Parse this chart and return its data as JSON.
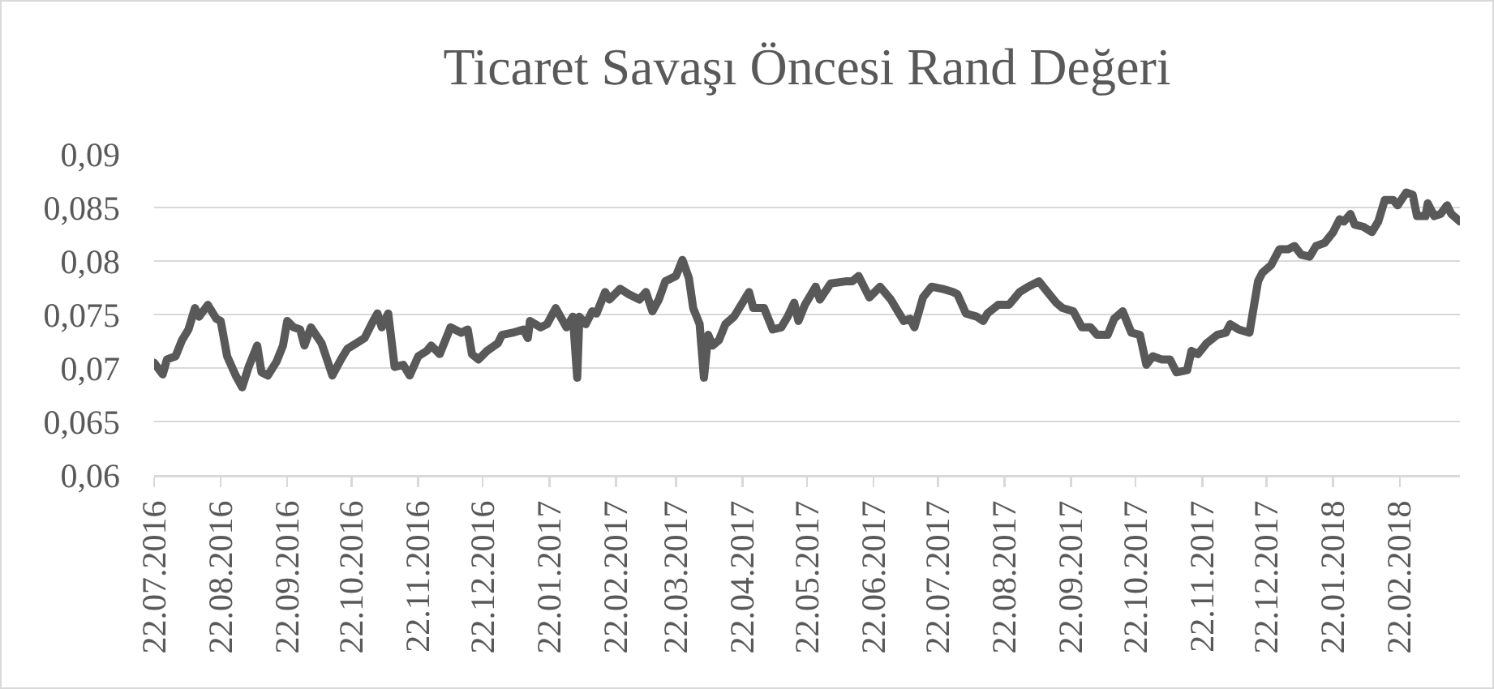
{
  "chart_data": {
    "type": "line",
    "title": "Ticaret Savaşı Öncesi Rand Değeri",
    "x": [
      "2016-07-22",
      "2016-07-26",
      "2016-07-28",
      "2016-08-01",
      "2016-08-04",
      "2016-08-07",
      "2016-08-10",
      "2016-08-12",
      "2016-08-16",
      "2016-08-20",
      "2016-08-22",
      "2016-08-25",
      "2016-08-29",
      "2016-09-01",
      "2016-09-04",
      "2016-09-08",
      "2016-09-10",
      "2016-09-13",
      "2016-09-17",
      "2016-09-20",
      "2016-09-22",
      "2016-09-25",
      "2016-09-28",
      "2016-09-30",
      "2016-10-03",
      "2016-10-08",
      "2016-10-13",
      "2016-10-17",
      "2016-10-20",
      "2016-10-24",
      "2016-10-28",
      "2016-11-01",
      "2016-11-03",
      "2016-11-05",
      "2016-11-08",
      "2016-11-11",
      "2016-11-15",
      "2016-11-18",
      "2016-11-22",
      "2016-11-26",
      "2016-11-28",
      "2016-12-02",
      "2016-12-07",
      "2016-12-12",
      "2016-12-15",
      "2016-12-17",
      "2016-12-20",
      "2016-12-24",
      "2016-12-29",
      "2016-12-31",
      "2017-01-05",
      "2017-01-10",
      "2017-01-12",
      "2017-01-13",
      "2017-01-18",
      "2017-01-21",
      "2017-01-25",
      "2017-01-30",
      "2017-02-02",
      "2017-02-04",
      "2017-02-05",
      "2017-02-08",
      "2017-02-11",
      "2017-02-13",
      "2017-02-17",
      "2017-02-19",
      "2017-02-24",
      "2017-02-28",
      "2017-03-05",
      "2017-03-08",
      "2017-03-11",
      "2017-03-14",
      "2017-03-17",
      "2017-03-22",
      "2017-03-25",
      "2017-03-28",
      "2017-03-30",
      "2017-04-02",
      "2017-04-04",
      "2017-04-06",
      "2017-04-08",
      "2017-04-11",
      "2017-04-14",
      "2017-04-18",
      "2017-04-22",
      "2017-04-25",
      "2017-04-27",
      "2017-05-02",
      "2017-05-06",
      "2017-05-10",
      "2017-05-13",
      "2017-05-16",
      "2017-05-18",
      "2017-05-21",
      "2017-05-26",
      "2017-05-28",
      "2017-06-02",
      "2017-06-09",
      "2017-06-12",
      "2017-06-15",
      "2017-06-20",
      "2017-06-25",
      "2017-06-30",
      "2017-07-06",
      "2017-07-09",
      "2017-07-11",
      "2017-07-15",
      "2017-07-19",
      "2017-07-24",
      "2017-07-29",
      "2017-07-31",
      "2017-08-04",
      "2017-08-09",
      "2017-08-12",
      "2017-08-14",
      "2017-08-19",
      "2017-08-24",
      "2017-08-29",
      "2017-09-02",
      "2017-09-07",
      "2017-09-11",
      "2017-09-15",
      "2017-09-18",
      "2017-09-23",
      "2017-09-27",
      "2017-10-01",
      "2017-10-04",
      "2017-10-09",
      "2017-10-12",
      "2017-10-16",
      "2017-10-20",
      "2017-10-24",
      "2017-10-27",
      "2017-10-30",
      "2017-11-03",
      "2017-11-07",
      "2017-11-10",
      "2017-11-15",
      "2017-11-17",
      "2017-11-20",
      "2017-11-24",
      "2017-11-29",
      "2017-12-03",
      "2017-12-05",
      "2017-12-09",
      "2017-12-14",
      "2017-12-18",
      "2017-12-20",
      "2017-12-24",
      "2017-12-28",
      "2018-01-01",
      "2018-01-04",
      "2018-01-07",
      "2018-01-11",
      "2018-01-14",
      "2018-01-18",
      "2018-01-22",
      "2018-01-25",
      "2018-01-27",
      "2018-01-30",
      "2018-02-01",
      "2018-02-05",
      "2018-02-09",
      "2018-02-12",
      "2018-02-15",
      "2018-02-19",
      "2018-02-21",
      "2018-02-25",
      "2018-02-28",
      "2018-03-02",
      "2018-03-06",
      "2018-03-07",
      "2018-03-10",
      "2018-03-13",
      "2018-03-16",
      "2018-03-18",
      "2018-03-22"
    ],
    "series": [
      {
        "color": "#595959",
        "values": [
          0.0705,
          0.0694,
          0.0708,
          0.0711,
          0.0726,
          0.0736,
          0.0756,
          0.0748,
          0.0759,
          0.0746,
          0.0744,
          0.0711,
          0.0693,
          0.0682,
          0.0701,
          0.0721,
          0.0696,
          0.0693,
          0.0706,
          0.0721,
          0.0744,
          0.0738,
          0.0736,
          0.0721,
          0.0738,
          0.0723,
          0.0693,
          0.0708,
          0.0718,
          0.0723,
          0.0728,
          0.0744,
          0.0751,
          0.0738,
          0.0751,
          0.0701,
          0.0703,
          0.0693,
          0.0711,
          0.0716,
          0.0721,
          0.0713,
          0.0738,
          0.0733,
          0.0736,
          0.0713,
          0.0708,
          0.0716,
          0.0723,
          0.0731,
          0.0733,
          0.0736,
          0.0728,
          0.0744,
          0.0738,
          0.0741,
          0.0756,
          0.0738,
          0.0748,
          0.0691,
          0.0748,
          0.0741,
          0.0753,
          0.0751,
          0.0771,
          0.0764,
          0.0774,
          0.0769,
          0.0764,
          0.0771,
          0.0753,
          0.0764,
          0.0781,
          0.0786,
          0.0801,
          0.0784,
          0.0756,
          0.0741,
          0.0691,
          0.0731,
          0.0721,
          0.0726,
          0.0741,
          0.0748,
          0.0761,
          0.0771,
          0.0756,
          0.0756,
          0.0736,
          0.0738,
          0.0748,
          0.0761,
          0.0744,
          0.0759,
          0.0776,
          0.0764,
          0.0779,
          0.0781,
          0.0781,
          0.0786,
          0.0766,
          0.0776,
          0.0764,
          0.0744,
          0.0746,
          0.0738,
          0.0766,
          0.0776,
          0.0774,
          0.0771,
          0.0769,
          0.0751,
          0.0748,
          0.0744,
          0.0751,
          0.0759,
          0.0759,
          0.0771,
          0.0776,
          0.0781,
          0.0771,
          0.0761,
          0.0756,
          0.0753,
          0.0738,
          0.0738,
          0.0731,
          0.0731,
          0.0746,
          0.0753,
          0.0733,
          0.0731,
          0.0703,
          0.0711,
          0.0708,
          0.0708,
          0.0696,
          0.0698,
          0.0716,
          0.0713,
          0.0723,
          0.0731,
          0.0733,
          0.0741,
          0.0736,
          0.0733,
          0.0781,
          0.0789,
          0.0796,
          0.0811,
          0.0811,
          0.0814,
          0.0806,
          0.0804,
          0.0814,
          0.0817,
          0.0827,
          0.0839,
          0.0837,
          0.0844,
          0.0834,
          0.0832,
          0.0827,
          0.0837,
          0.0857,
          0.0857,
          0.0852,
          0.0864,
          0.0862,
          0.0842,
          0.0842,
          0.0854,
          0.0842,
          0.0844,
          0.0852,
          0.0844,
          0.0837
        ]
      }
    ],
    "xlim": [
      "2016-07-22",
      "2018-03-22"
    ],
    "xticks": [
      {
        "value": "2016-07-22",
        "label": "22.07.2016"
      },
      {
        "value": "2016-08-22",
        "label": "22.08.2016"
      },
      {
        "value": "2016-09-22",
        "label": "22.09.2016"
      },
      {
        "value": "2016-10-22",
        "label": "22.10.2016"
      },
      {
        "value": "2016-11-22",
        "label": "22.11.2016"
      },
      {
        "value": "2016-12-22",
        "label": "22.12.2016"
      },
      {
        "value": "2017-01-22",
        "label": "22.01.2017"
      },
      {
        "value": "2017-02-22",
        "label": "22.02.2017"
      },
      {
        "value": "2017-03-22",
        "label": "22.03.2017"
      },
      {
        "value": "2017-04-22",
        "label": "22.04.2017"
      },
      {
        "value": "2017-05-22",
        "label": "22.05.2017"
      },
      {
        "value": "2017-06-22",
        "label": "22.06.2017"
      },
      {
        "value": "2017-07-22",
        "label": "22.07.2017"
      },
      {
        "value": "2017-08-22",
        "label": "22.08.2017"
      },
      {
        "value": "2017-09-22",
        "label": "22.09.2017"
      },
      {
        "value": "2017-10-22",
        "label": "22.10.2017"
      },
      {
        "value": "2017-11-22",
        "label": "22.11.2017"
      },
      {
        "value": "2017-12-22",
        "label": "22.12.2017"
      },
      {
        "value": "2018-01-22",
        "label": "22.01.2018"
      },
      {
        "value": "2018-02-22",
        "label": "22.02.2018"
      }
    ],
    "ylim": [
      0.06,
      0.09
    ],
    "yticks": [
      {
        "value": 0.06,
        "label": "0,06"
      },
      {
        "value": 0.065,
        "label": "0,065"
      },
      {
        "value": 0.07,
        "label": "0,07"
      },
      {
        "value": 0.075,
        "label": "0,075"
      },
      {
        "value": 0.08,
        "label": "0,08"
      },
      {
        "value": 0.085,
        "label": "0,085"
      },
      {
        "value": 0.09,
        "label": "0,09"
      }
    ],
    "grid": "y",
    "marker": "none",
    "line_style": "solid"
  }
}
